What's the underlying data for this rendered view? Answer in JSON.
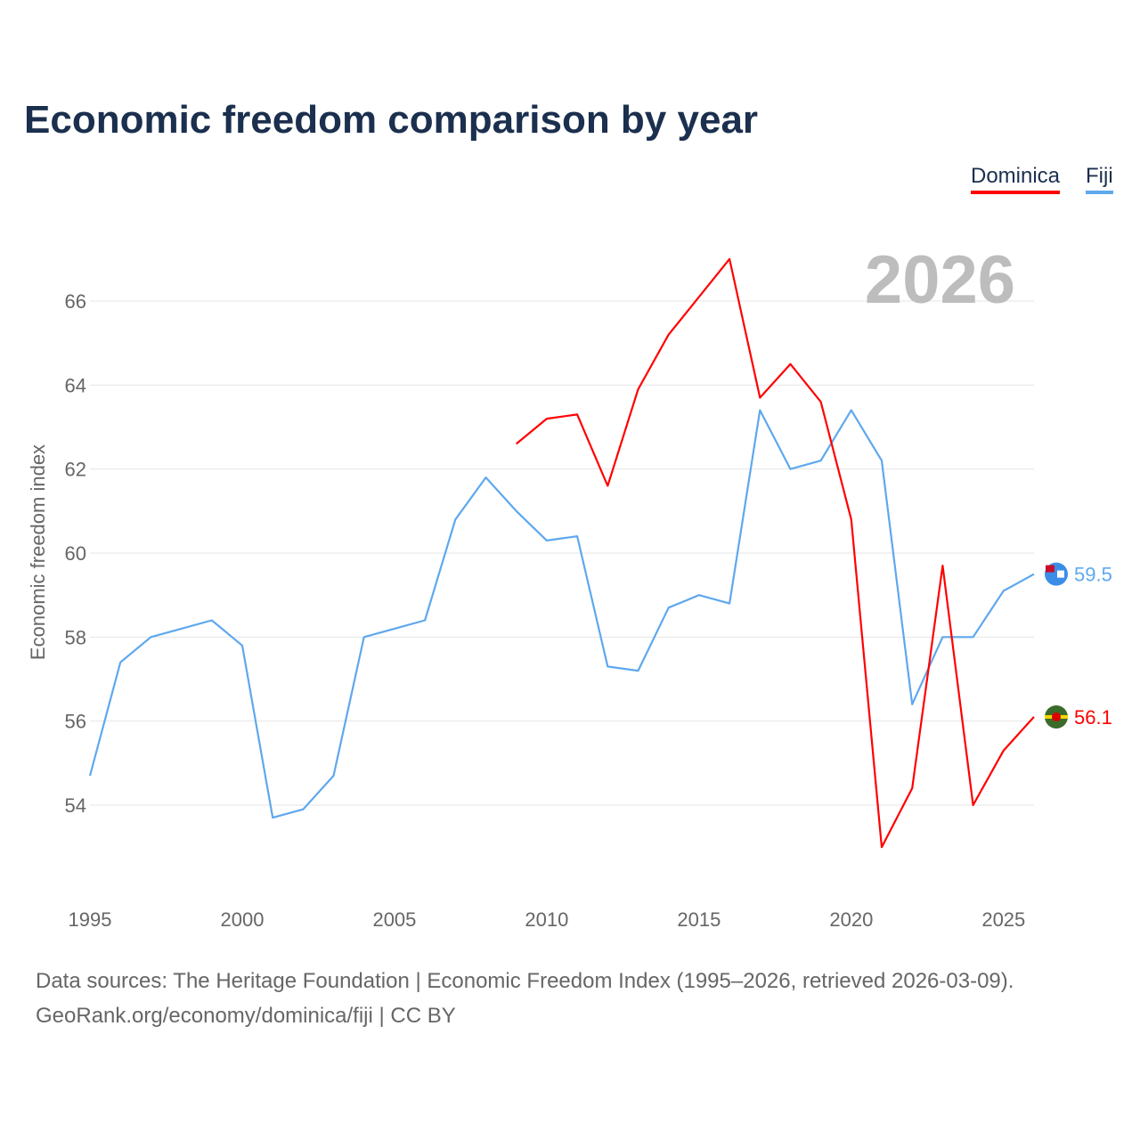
{
  "title": "Economic freedom comparison by year",
  "legend": [
    {
      "label": "Dominica",
      "color": "#ff0000"
    },
    {
      "label": "Fiji",
      "color": "#5ea8ee"
    }
  ],
  "footer": {
    "sources": "Data sources: The Heritage Foundation | Economic Freedom Index (1995–2026, retrieved 2026-03-09).",
    "credit": "GeoRank.org/economy/dominica/fiji | CC BY"
  },
  "chart_data": {
    "type": "line",
    "title": "Economic freedom comparison by year",
    "xlabel": "",
    "ylabel": "Economic freedom index",
    "year_label": "2026",
    "xlim": [
      1995,
      2026
    ],
    "ylim": [
      52.3,
      67.6
    ],
    "xticks": [
      1995,
      2000,
      2005,
      2010,
      2015,
      2020,
      2025
    ],
    "yticks": [
      54,
      56,
      58,
      60,
      62,
      64,
      66
    ],
    "grid": true,
    "legend_position": "top-right",
    "series": [
      {
        "name": "Dominica",
        "color": "#ff0000",
        "end_label": "56.1",
        "x": [
          2009,
          2010,
          2011,
          2012,
          2013,
          2014,
          2015,
          2016,
          2017,
          2018,
          2019,
          2020,
          2021,
          2022,
          2023,
          2024,
          2025,
          2026
        ],
        "values": [
          62.6,
          63.2,
          63.3,
          61.6,
          63.9,
          65.2,
          66.1,
          67.0,
          63.7,
          64.5,
          63.6,
          60.8,
          53.0,
          54.4,
          59.7,
          54.0,
          55.3,
          56.1
        ]
      },
      {
        "name": "Fiji",
        "color": "#5ea8ee",
        "end_label": "59.5",
        "x": [
          1995,
          1996,
          1997,
          1998,
          1999,
          2000,
          2001,
          2002,
          2003,
          2004,
          2005,
          2006,
          2007,
          2008,
          2009,
          2010,
          2011,
          2012,
          2013,
          2014,
          2015,
          2016,
          2017,
          2018,
          2019,
          2020,
          2021,
          2022,
          2023,
          2024,
          2025,
          2026
        ],
        "values": [
          54.7,
          57.4,
          58.0,
          58.2,
          58.4,
          57.8,
          53.7,
          53.9,
          54.7,
          58.0,
          58.2,
          58.4,
          60.8,
          61.8,
          61.0,
          60.3,
          60.4,
          57.3,
          57.2,
          58.7,
          59.0,
          58.8,
          63.4,
          62.0,
          62.2,
          63.4,
          62.2,
          56.4,
          58.0,
          58.0,
          59.1,
          59.5
        ]
      }
    ]
  }
}
